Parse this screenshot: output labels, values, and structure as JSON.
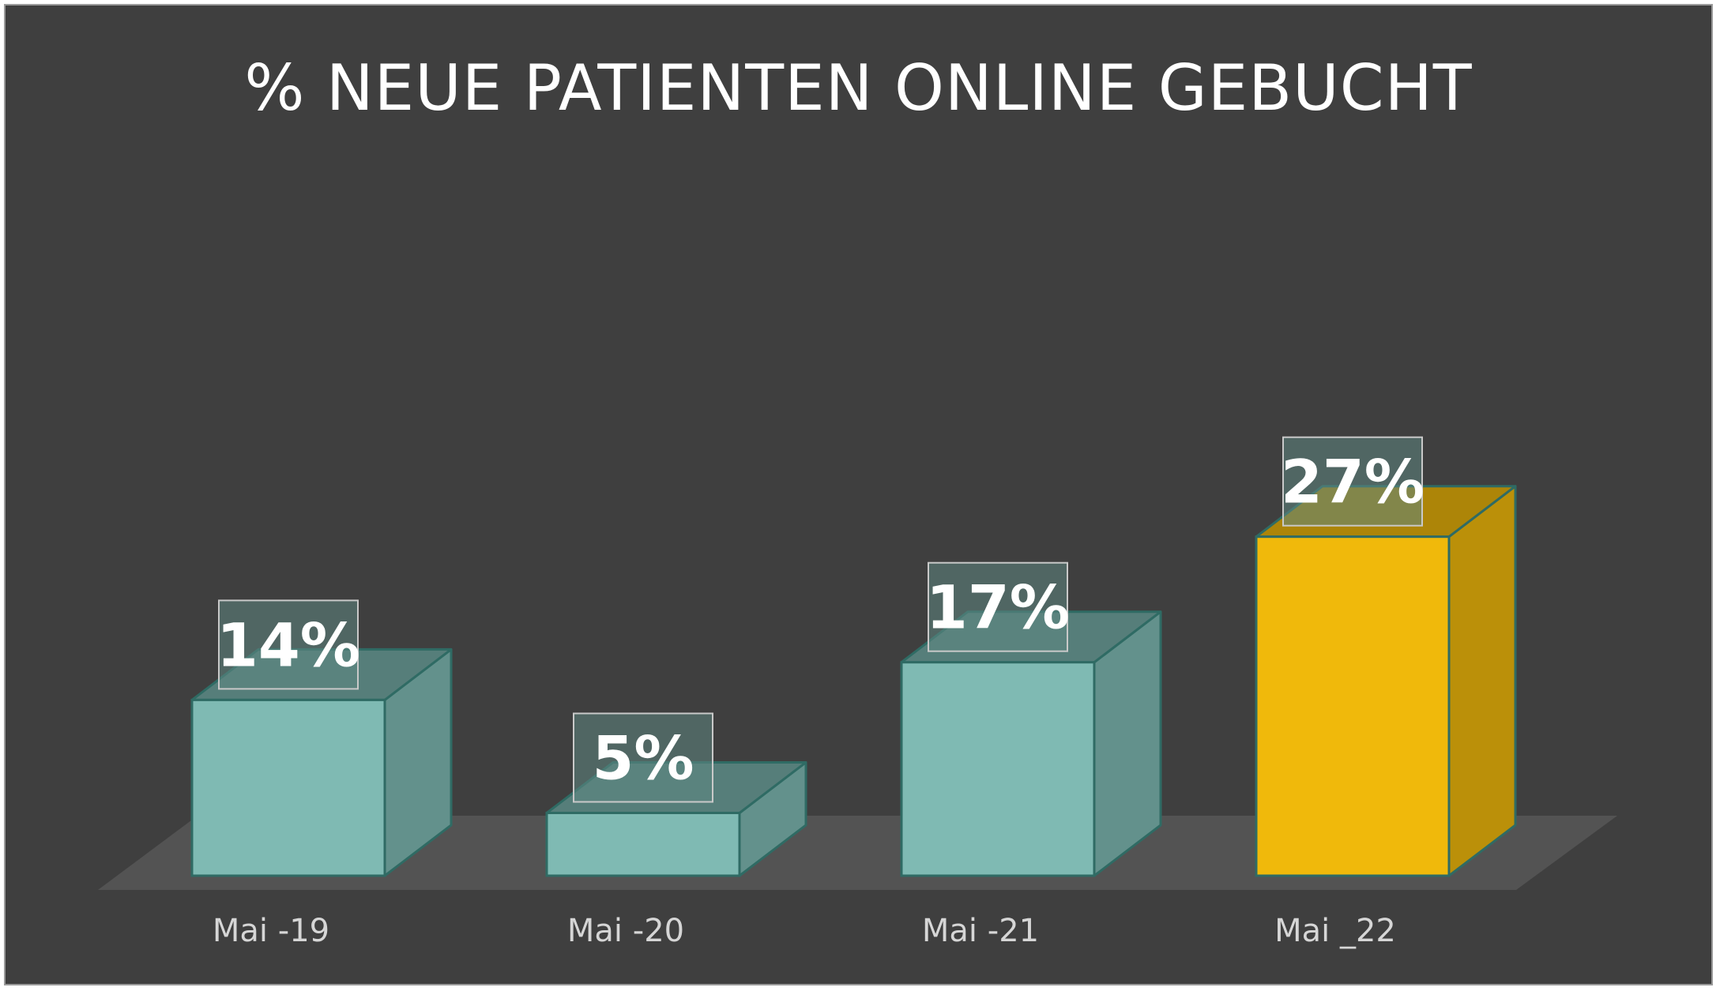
{
  "chart_data": {
    "type": "bar",
    "title": "% NEUE PATIENTEN ONLINE GEBUCHT",
    "categories": [
      "Mai -19",
      "Mai -20",
      "Mai -21",
      "Mai _22"
    ],
    "values": [
      14,
      5,
      17,
      27
    ],
    "data_labels": [
      "14%",
      "5%",
      "17%",
      "27%"
    ],
    "unit": "%",
    "ylim": [
      0,
      30
    ],
    "grid": false,
    "legend": "none",
    "style": "3d-column",
    "colors": {
      "background": "#3f3f3f",
      "bar_default": "#7fbab3",
      "bar_highlight": "#f0b90b",
      "floor": "#535353",
      "text": "#ffffff"
    },
    "highlight_index": 3
  }
}
